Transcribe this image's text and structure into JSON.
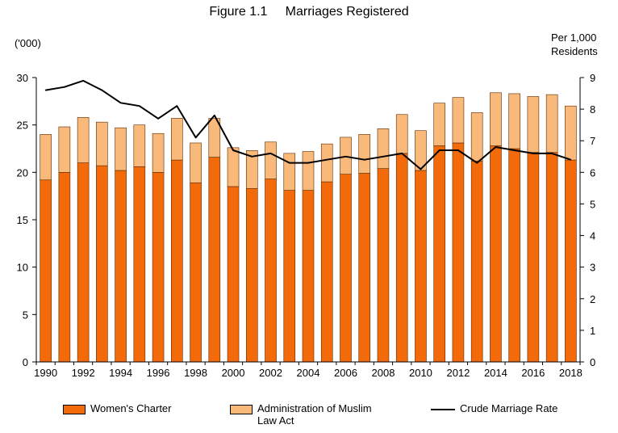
{
  "figure": {
    "title": "Figure 1.1     Marriages Registered",
    "left_unit": "('000)",
    "right_unit_line1": "Per 1,000",
    "right_unit_line2": "Residents"
  },
  "legend": {
    "womens_charter": "Women's Charter",
    "muslim_line1": "Administration of Muslim",
    "muslim_line2": "Law Act",
    "crude_rate": "Crude Marriage Rate"
  },
  "colors": {
    "womens_charter": "#F26A0A",
    "muslim": "#F9B97A",
    "rate_line": "#000000",
    "bar_border": "#5a2a00"
  },
  "chart_data": {
    "type": "bar",
    "title": "Marriages Registered",
    "categories": [
      1990,
      1991,
      1992,
      1993,
      1994,
      1995,
      1996,
      1997,
      1998,
      1999,
      2000,
      2001,
      2002,
      2003,
      2004,
      2005,
      2006,
      2007,
      2008,
      2009,
      2010,
      2011,
      2012,
      2013,
      2014,
      2015,
      2016,
      2017,
      2018
    ],
    "x_tick_labels": [
      "1990",
      "1992",
      "1994",
      "1996",
      "1998",
      "2000",
      "2002",
      "2004",
      "2006",
      "2008",
      "2010",
      "2012",
      "2014",
      "2016",
      "2018"
    ],
    "ylabel": "('000)",
    "ylim": [
      0,
      30
    ],
    "y_ticks": [
      0,
      5,
      10,
      15,
      20,
      25,
      30
    ],
    "y2label": "Per 1,000 Residents",
    "y2lim": [
      0,
      9
    ],
    "y2_ticks": [
      0,
      1,
      2,
      3,
      4,
      5,
      6,
      7,
      8,
      9
    ],
    "stacked": true,
    "series": [
      {
        "name": "Women's Charter",
        "type": "bar",
        "values": [
          19.2,
          20.0,
          21.0,
          20.7,
          20.2,
          20.6,
          20.0,
          21.3,
          18.9,
          21.6,
          18.5,
          18.3,
          19.3,
          18.1,
          18.1,
          19.0,
          19.8,
          19.9,
          20.4,
          22.0,
          20.2,
          22.8,
          23.1,
          21.2,
          22.8,
          22.5,
          22.1,
          22.1,
          21.3
        ]
      },
      {
        "name": "Administration of Muslim Law Act",
        "type": "bar",
        "values": [
          4.8,
          4.8,
          4.8,
          4.6,
          4.5,
          4.4,
          4.1,
          4.4,
          4.2,
          4.1,
          4.1,
          4.0,
          3.9,
          3.9,
          4.1,
          4.0,
          3.9,
          4.1,
          4.2,
          4.1,
          4.2,
          4.5,
          4.8,
          5.1,
          5.6,
          5.8,
          5.9,
          6.1,
          5.7
        ]
      },
      {
        "name": "Crude Marriage Rate",
        "type": "line",
        "axis": "right",
        "values": [
          8.6,
          8.7,
          8.9,
          8.6,
          8.2,
          8.1,
          7.7,
          8.1,
          7.1,
          7.8,
          6.7,
          6.5,
          6.6,
          6.3,
          6.3,
          6.4,
          6.5,
          6.4,
          6.5,
          6.6,
          6.1,
          6.7,
          6.7,
          6.3,
          6.8,
          6.7,
          6.6,
          6.6,
          6.4
        ]
      }
    ],
    "grid": false,
    "legend_position": "bottom"
  }
}
